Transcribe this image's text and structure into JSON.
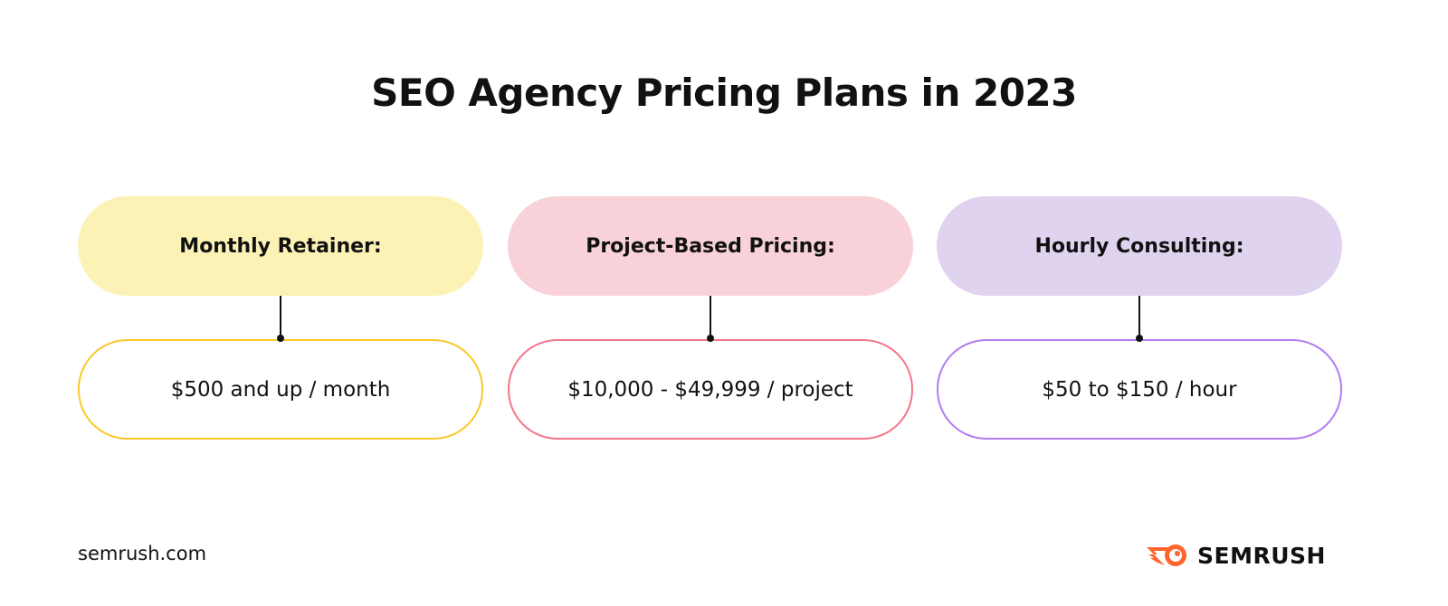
{
  "title": "SEO Agency Pricing Plans in 2023",
  "plans": [
    {
      "name": "Monthly Retainer:",
      "price": "$500 and up / month",
      "fill": "#fdf2b5",
      "border": "#f9c828"
    },
    {
      "name": "Project-Based Pricing:",
      "price": "$10,000 - $49,999 / project",
      "fill": "#f9d1d8",
      "border": "#f4758a"
    },
    {
      "name": "Hourly Consulting:",
      "price": "$50 to $150 / hour",
      "fill": "#e0d3ef",
      "border": "#b07cf2"
    }
  ],
  "footer": {
    "site": "semrush.com",
    "brand": "SEMRUSH",
    "brand_color": "#ff642d"
  }
}
